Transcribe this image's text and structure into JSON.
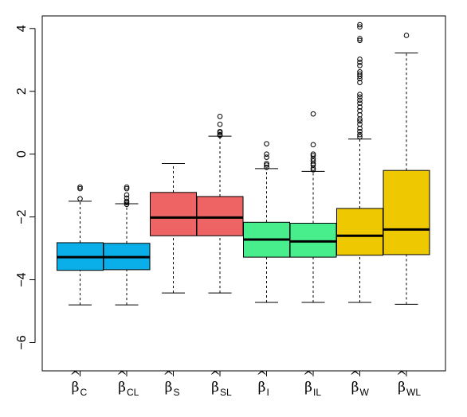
{
  "chart_data": {
    "type": "boxplot",
    "title": "",
    "xlabel": "",
    "ylabel": "",
    "ylim": [
      -6.9,
      4.4
    ],
    "yticks": [
      -6,
      -4,
      -2,
      0,
      2,
      4
    ],
    "ytick_labels": [
      "−6",
      "−4",
      "−2",
      "0",
      "2",
      "4"
    ],
    "grid": false,
    "legend": "none",
    "categories": [
      {
        "symbol": "β",
        "hat": "^",
        "sub": "C",
        "color": "#0aaee8"
      },
      {
        "symbol": "β",
        "hat": "^",
        "sub": "CL",
        "color": "#0aaee8"
      },
      {
        "symbol": "β",
        "hat": "^",
        "sub": "S",
        "color": "#ee6465"
      },
      {
        "symbol": "β",
        "hat": "^",
        "sub": "SL",
        "color": "#ee6465"
      },
      {
        "symbol": "β",
        "hat": "^",
        "sub": "I",
        "color": "#48ee8c"
      },
      {
        "symbol": "β",
        "hat": "^",
        "sub": "IL",
        "color": "#48ee8c"
      },
      {
        "symbol": "β",
        "hat": "^",
        "sub": "W",
        "color": "#eec800"
      },
      {
        "symbol": "β",
        "hat": "^",
        "sub": "WL",
        "color": "#eec800"
      }
    ],
    "boxes": [
      {
        "whisker_low": -4.8,
        "q1": -3.7,
        "median": -3.28,
        "q3": -2.82,
        "whisker_high": -1.5,
        "outliers": [
          -1.05,
          -1.1,
          -1.42
        ]
      },
      {
        "whisker_low": -4.8,
        "q1": -3.68,
        "median": -3.28,
        "q3": -2.84,
        "whisker_high": -1.58,
        "outliers": [
          -1.05,
          -1.1,
          -1.3,
          -1.4,
          -1.5,
          -1.55,
          -1.6
        ]
      },
      {
        "whisker_low": -4.42,
        "q1": -2.6,
        "median": -2.02,
        "q3": -1.22,
        "whisker_high": -0.3,
        "outliers": []
      },
      {
        "whisker_low": -4.42,
        "q1": -2.6,
        "median": -2.02,
        "q3": -1.35,
        "whisker_high": 0.57,
        "outliers": [
          0.6,
          0.62,
          0.68,
          0.72,
          0.95,
          1.2
        ]
      },
      {
        "whisker_low": -4.72,
        "q1": -3.28,
        "median": -2.72,
        "q3": -2.17,
        "whisker_high": -0.46,
        "outliers": [
          -0.42,
          -0.35,
          -0.3,
          -0.1,
          0.0,
          0.33
        ]
      },
      {
        "whisker_low": -4.72,
        "q1": -3.28,
        "median": -2.78,
        "q3": -2.2,
        "whisker_high": -0.55,
        "outliers": [
          -0.5,
          -0.45,
          -0.35,
          -0.3,
          -0.22,
          -0.15,
          -0.05,
          0.0,
          0.3,
          1.28
        ]
      },
      {
        "whisker_low": -4.72,
        "q1": -3.22,
        "median": -2.6,
        "q3": -1.73,
        "whisker_high": 0.48,
        "outliers": [
          0.55,
          0.62,
          0.72,
          0.82,
          0.95,
          1.05,
          1.12,
          1.25,
          1.38,
          1.5,
          1.62,
          1.72,
          1.82,
          1.9,
          2.28,
          2.4,
          2.48,
          2.55,
          2.62,
          2.82,
          2.92,
          3.02,
          3.62,
          3.68,
          4.05,
          4.12
        ]
      },
      {
        "whisker_low": -4.78,
        "q1": -3.2,
        "median": -2.4,
        "q3": -0.52,
        "whisker_high": 3.22,
        "outliers": [
          3.78
        ]
      }
    ]
  }
}
